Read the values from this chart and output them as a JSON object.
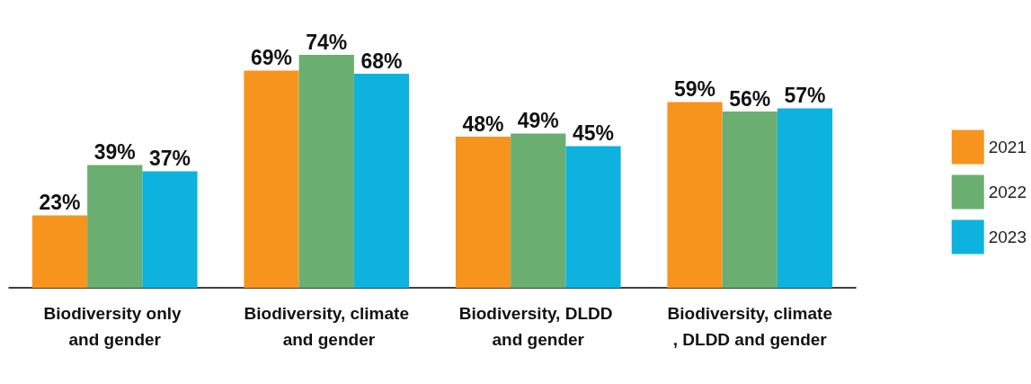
{
  "chart_data": {
    "type": "bar",
    "categories": [
      "Biodiversity only and gender",
      "Biodiversity, climate and gender",
      "Biodiversity, DLDD and gender",
      "Biodiversity, climate, DLDD and gender"
    ],
    "series": [
      {
        "name": "2021",
        "color": "#f7941d",
        "values": [
          23,
          69,
          48,
          59
        ],
        "value_labels": [
          "23%",
          "69%",
          "48%",
          "59%"
        ]
      },
      {
        "name": "2022",
        "color": "#6aaf71",
        "values": [
          39,
          74,
          49,
          56
        ],
        "value_labels": [
          "39%",
          "74%",
          "49%",
          "56%"
        ]
      },
      {
        "name": "2023",
        "color": "#0db3de",
        "values": [
          37,
          68,
          45,
          57
        ],
        "value_labels": [
          "37%",
          "68%",
          "45%",
          "57%"
        ]
      }
    ],
    "legend": "right",
    "grid": false
  }
}
